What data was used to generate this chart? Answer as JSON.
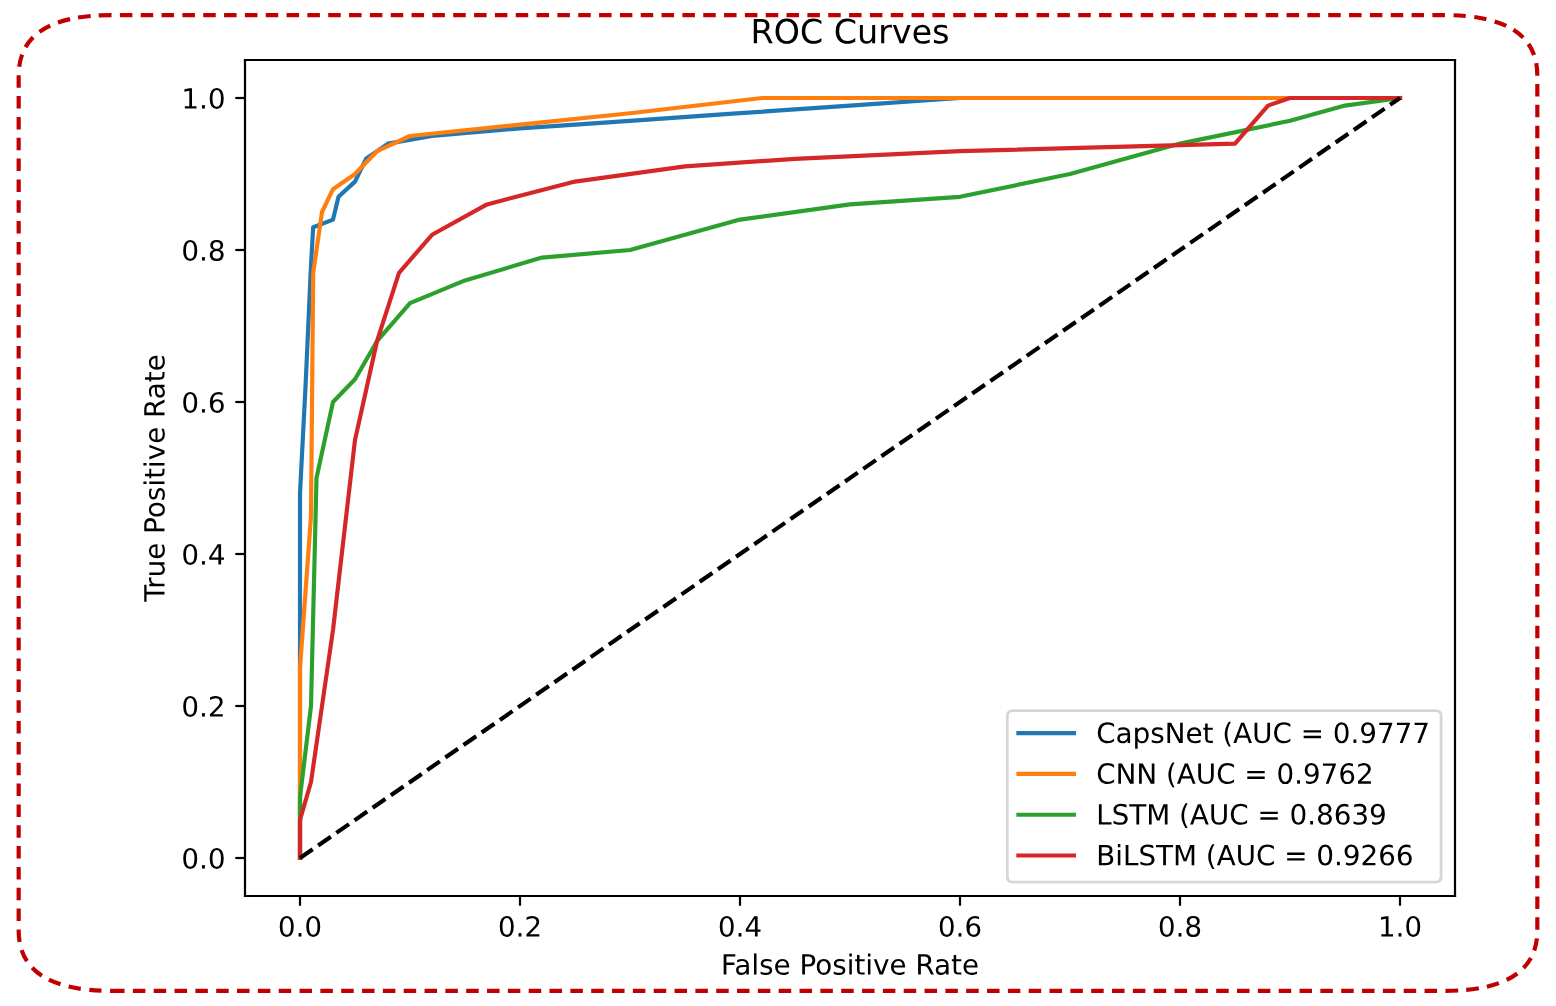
{
  "chart_data": {
    "type": "line",
    "title": "ROC Curves",
    "xlabel": "False Positive Rate",
    "ylabel": "True Positive Rate",
    "xlim": [
      -0.05,
      1.05
    ],
    "ylim": [
      -0.05,
      1.05
    ],
    "xticks": [
      {
        "value": 0,
        "label": "0.0"
      },
      0.2,
      0.4,
      0.6,
      0.8,
      {
        "value": 1,
        "label": "1.0"
      }
    ],
    "yticks": [
      {
        "value": 0,
        "label": "0.0"
      },
      0.2,
      0.4,
      0.6,
      0.8,
      {
        "value": 1,
        "label": "1.0"
      }
    ],
    "grid": false,
    "legend": "bottom right",
    "marker": "none",
    "series": [
      {
        "name": "CapsNet (AUC = 0.9777",
        "color": "#1f77b4",
        "x": [
          0,
          0,
          0.005,
          0.01,
          0.012,
          0.03,
          0.035,
          0.05,
          0.06,
          0.08,
          0.12,
          0.2,
          0.3,
          0.4,
          0.5,
          0.6,
          1
        ],
        "values": [
          0,
          0.48,
          0.62,
          0.78,
          0.83,
          0.84,
          0.87,
          0.89,
          0.92,
          0.94,
          0.95,
          0.96,
          0.97,
          0.98,
          0.99,
          1.0,
          1.0
        ]
      },
      {
        "name": "CNN (AUC = 0.9762",
        "color": "#ff7f0e",
        "x": [
          0,
          0,
          0.01,
          0.012,
          0.02,
          0.03,
          0.05,
          0.07,
          0.1,
          0.2,
          0.3,
          0.42,
          1
        ],
        "values": [
          0,
          0.25,
          0.45,
          0.77,
          0.85,
          0.88,
          0.9,
          0.93,
          0.95,
          0.965,
          0.98,
          1.0,
          1.0
        ]
      },
      {
        "name": "LSTM (AUC = 0.8639",
        "color": "#2ca02c",
        "x": [
          0,
          0,
          0.01,
          0.015,
          0.03,
          0.05,
          0.07,
          0.1,
          0.15,
          0.22,
          0.3,
          0.35,
          0.4,
          0.5,
          0.6,
          0.7,
          0.8,
          0.9,
          0.95,
          1
        ],
        "values": [
          0,
          0.08,
          0.2,
          0.5,
          0.6,
          0.63,
          0.68,
          0.73,
          0.76,
          0.79,
          0.8,
          0.82,
          0.84,
          0.86,
          0.87,
          0.9,
          0.94,
          0.97,
          0.99,
          1.0
        ]
      },
      {
        "name": "BiLSTM (AUC = 0.9266",
        "color": "#d62728",
        "x": [
          0,
          0,
          0.01,
          0.03,
          0.05,
          0.07,
          0.09,
          0.12,
          0.17,
          0.25,
          0.35,
          0.45,
          0.6,
          0.85,
          0.88,
          0.9,
          1
        ],
        "values": [
          0,
          0.05,
          0.1,
          0.3,
          0.55,
          0.68,
          0.77,
          0.82,
          0.86,
          0.89,
          0.91,
          0.92,
          0.93,
          0.94,
          0.99,
          1.0,
          1.0
        ]
      },
      {
        "color": "#000000",
        "line_style": "dashed",
        "x": [
          0,
          1
        ],
        "values": [
          0,
          1
        ]
      }
    ]
  }
}
